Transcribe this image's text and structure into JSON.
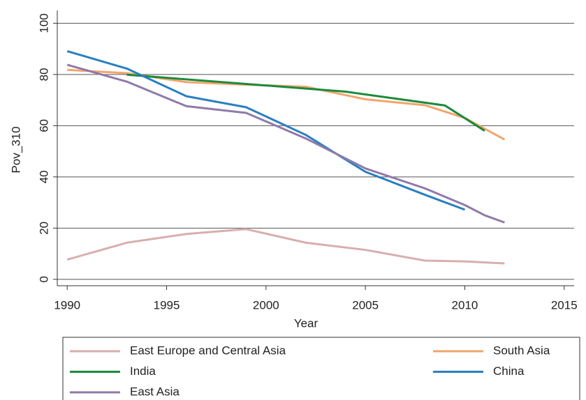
{
  "chart_data": {
    "type": "line",
    "x_label": "Year",
    "y_label": "Pov_310",
    "xlim": [
      1989.5,
      2015.5
    ],
    "xticks": [
      1990,
      1995,
      2000,
      2005,
      2010,
      2015
    ],
    "ylim": [
      -2.5,
      105
    ],
    "yticks": [
      0,
      20,
      40,
      60,
      80,
      100
    ],
    "grid": true,
    "legend": "bottom",
    "series": [
      {
        "name": "East Europe and Central Asia",
        "color": "#d9aeae",
        "x": [
          1990,
          1993,
          1996,
          1999,
          2002,
          2005,
          2008,
          2010,
          2012
        ],
        "values": [
          7.7,
          14.3,
          17.7,
          19.6,
          14.3,
          11.5,
          7.3,
          7.0,
          6.2
        ]
      },
      {
        "name": "South Asia",
        "color": "#f3a46c",
        "x": [
          1990,
          1993,
          1996,
          1999,
          2002,
          2005,
          2008,
          2010,
          2012
        ],
        "values": [
          81.8,
          80.5,
          77.0,
          76.0,
          75.2,
          70.3,
          68.0,
          63.0,
          54.6
        ]
      },
      {
        "name": "India",
        "color": "#1c8a3c",
        "x": [
          1993,
          2004,
          2009,
          2011
        ],
        "values": [
          79.9,
          73.3,
          67.9,
          58.0
        ]
      },
      {
        "name": "China",
        "color": "#2a7fc1",
        "x": [
          1990,
          1993,
          1996,
          1999,
          2002,
          2005,
          2008,
          2010
        ],
        "values": [
          89.1,
          82.3,
          71.5,
          67.2,
          56.4,
          42.0,
          33.0,
          27.2
        ]
      },
      {
        "name": "East Asia",
        "color": "#8f7aa8",
        "x": [
          1990,
          1993,
          1996,
          1999,
          2002,
          2005,
          2008,
          2010,
          2011,
          2012
        ],
        "values": [
          83.8,
          77.2,
          67.6,
          65.0,
          55.0,
          43.3,
          35.5,
          29.0,
          25.0,
          22.2
        ]
      }
    ]
  }
}
